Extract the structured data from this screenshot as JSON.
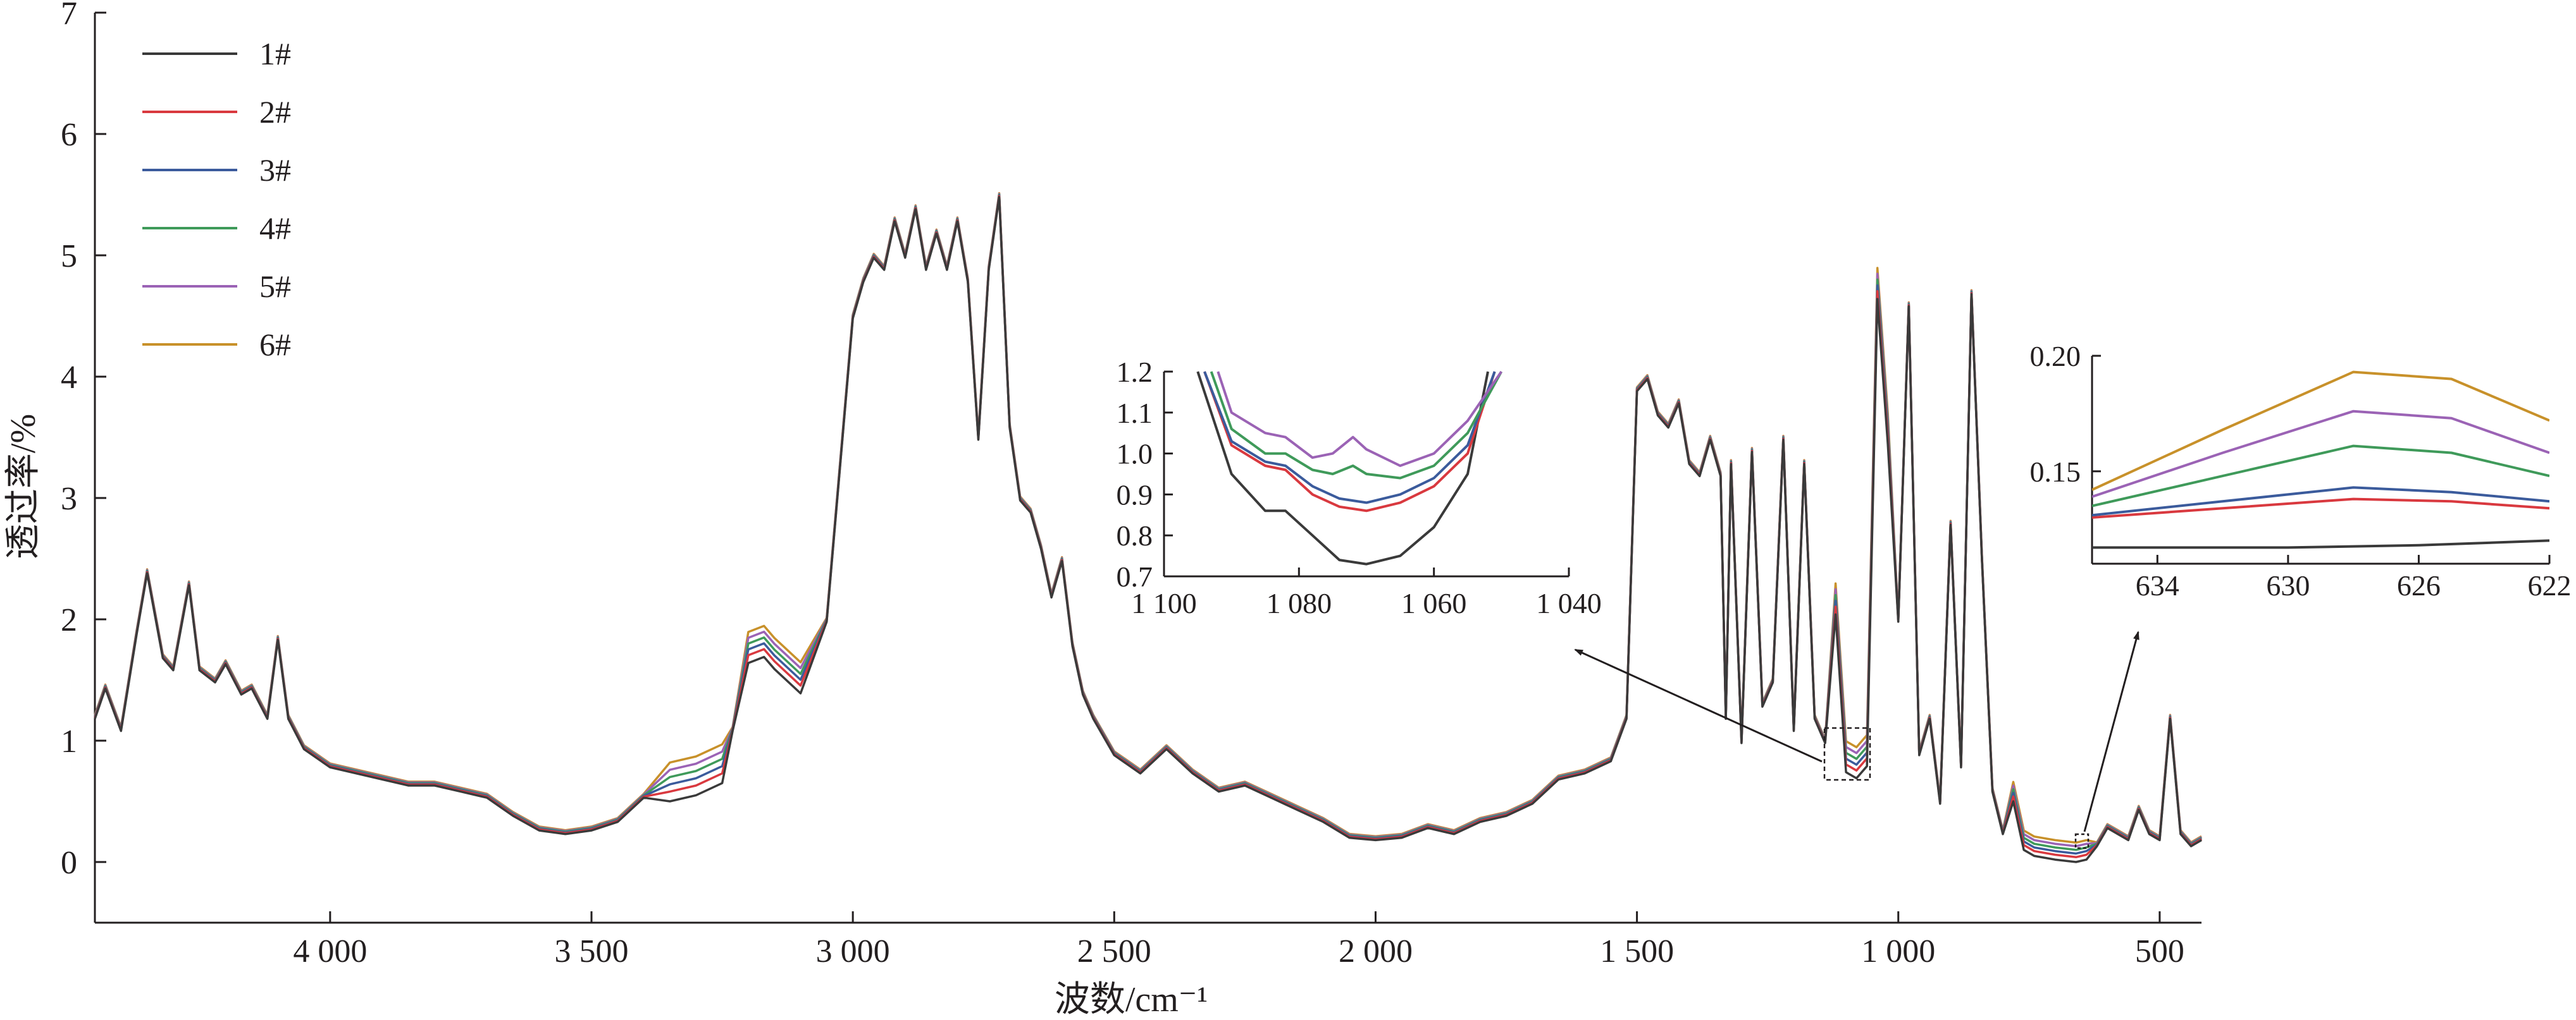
{
  "chart_data": [
    {
      "id": "main",
      "type": "line",
      "xlabel": "波数/cm⁻¹",
      "ylabel": "透过率/%",
      "x_reversed": true,
      "xlim": [
        4450,
        420
      ],
      "ylim": [
        -0.5,
        7
      ],
      "xticks": [
        4000,
        3500,
        3000,
        2500,
        2000,
        1500,
        1000,
        500
      ],
      "xtick_labels": [
        "4 000",
        "3 500",
        "3 000",
        "2 500",
        "2 000",
        "1 500",
        "1 000",
        "500"
      ],
      "yticks": [
        0,
        1,
        2,
        3,
        4,
        5,
        6,
        7
      ],
      "ytick_labels": [
        "0",
        "1",
        "2",
        "3",
        "4",
        "5",
        "6",
        "7"
      ],
      "legend_position": "top-left",
      "legend": [
        "1#",
        "2#",
        "3#",
        "4#",
        "5#",
        "6#"
      ],
      "series": [
        {
          "name": "1#",
          "color": "#3a3a3a",
          "offset": -0.1
        },
        {
          "name": "2#",
          "color": "#d9393f",
          "offset": -0.06
        },
        {
          "name": "3#",
          "color": "#3b5b9c",
          "offset": -0.03
        },
        {
          "name": "4#",
          "color": "#3f9a5a",
          "offset": 0.0
        },
        {
          "name": "5#",
          "color": "#9b63b5",
          "offset": 0.03
        },
        {
          "name": "6#",
          "color": "#c8912a",
          "offset": 0.06
        }
      ],
      "base_curve": [
        [
          4450,
          1.2
        ],
        [
          4430,
          1.45
        ],
        [
          4400,
          1.1
        ],
        [
          4370,
          1.9
        ],
        [
          4350,
          2.4
        ],
        [
          4320,
          1.7
        ],
        [
          4300,
          1.6
        ],
        [
          4270,
          2.3
        ],
        [
          4250,
          1.6
        ],
        [
          4220,
          1.5
        ],
        [
          4200,
          1.65
        ],
        [
          4170,
          1.4
        ],
        [
          4150,
          1.45
        ],
        [
          4120,
          1.2
        ],
        [
          4100,
          1.85
        ],
        [
          4080,
          1.2
        ],
        [
          4050,
          0.95
        ],
        [
          4000,
          0.8
        ],
        [
          3950,
          0.75
        ],
        [
          3900,
          0.7
        ],
        [
          3850,
          0.65
        ],
        [
          3800,
          0.65
        ],
        [
          3750,
          0.6
        ],
        [
          3700,
          0.55
        ],
        [
          3650,
          0.4
        ],
        [
          3600,
          0.28
        ],
        [
          3550,
          0.25
        ],
        [
          3500,
          0.28
        ],
        [
          3450,
          0.35
        ],
        [
          3400,
          0.55
        ],
        [
          3350,
          0.7
        ],
        [
          3300,
          0.75
        ],
        [
          3250,
          0.85
        ],
        [
          3230,
          1.1
        ],
        [
          3200,
          1.8
        ],
        [
          3170,
          1.85
        ],
        [
          3150,
          1.75
        ],
        [
          3100,
          1.55
        ],
        [
          3050,
          2.0
        ],
        [
          3020,
          3.5
        ],
        [
          3000,
          4.5
        ],
        [
          2980,
          4.8
        ],
        [
          2960,
          5.0
        ],
        [
          2940,
          4.9
        ],
        [
          2920,
          5.3
        ],
        [
          2900,
          5.0
        ],
        [
          2880,
          5.4
        ],
        [
          2860,
          4.9
        ],
        [
          2840,
          5.2
        ],
        [
          2820,
          4.9
        ],
        [
          2800,
          5.3
        ],
        [
          2780,
          4.8
        ],
        [
          2760,
          3.5
        ],
        [
          2740,
          4.9
        ],
        [
          2720,
          5.5
        ],
        [
          2700,
          3.6
        ],
        [
          2680,
          3.0
        ],
        [
          2660,
          2.9
        ],
        [
          2640,
          2.6
        ],
        [
          2620,
          2.2
        ],
        [
          2600,
          2.5
        ],
        [
          2580,
          1.8
        ],
        [
          2560,
          1.4
        ],
        [
          2540,
          1.2
        ],
        [
          2500,
          0.9
        ],
        [
          2450,
          0.75
        ],
        [
          2400,
          0.95
        ],
        [
          2350,
          0.75
        ],
        [
          2300,
          0.6
        ],
        [
          2250,
          0.65
        ],
        [
          2200,
          0.55
        ],
        [
          2150,
          0.45
        ],
        [
          2100,
          0.35
        ],
        [
          2050,
          0.22
        ],
        [
          2000,
          0.2
        ],
        [
          1950,
          0.22
        ],
        [
          1900,
          0.3
        ],
        [
          1850,
          0.25
        ],
        [
          1800,
          0.35
        ],
        [
          1750,
          0.4
        ],
        [
          1700,
          0.5
        ],
        [
          1650,
          0.7
        ],
        [
          1600,
          0.75
        ],
        [
          1550,
          0.85
        ],
        [
          1520,
          1.2
        ],
        [
          1500,
          3.9
        ],
        [
          1480,
          4.0
        ],
        [
          1460,
          3.7
        ],
        [
          1440,
          3.6
        ],
        [
          1420,
          3.8
        ],
        [
          1400,
          3.3
        ],
        [
          1380,
          3.2
        ],
        [
          1360,
          3.5
        ],
        [
          1340,
          3.2
        ],
        [
          1330,
          1.2
        ],
        [
          1320,
          3.3
        ],
        [
          1300,
          1.0
        ],
        [
          1280,
          3.4
        ],
        [
          1260,
          1.3
        ],
        [
          1240,
          1.5
        ],
        [
          1220,
          3.5
        ],
        [
          1200,
          1.1
        ],
        [
          1180,
          3.3
        ],
        [
          1160,
          1.2
        ],
        [
          1140,
          1.0
        ],
        [
          1120,
          2.2
        ],
        [
          1100,
          0.9
        ],
        [
          1080,
          0.85
        ],
        [
          1060,
          0.95
        ],
        [
          1040,
          4.8
        ],
        [
          1020,
          3.6
        ],
        [
          1000,
          2.0
        ],
        [
          980,
          4.6
        ],
        [
          960,
          0.9
        ],
        [
          940,
          1.2
        ],
        [
          920,
          0.5
        ],
        [
          900,
          2.8
        ],
        [
          880,
          0.8
        ],
        [
          860,
          4.7
        ],
        [
          840,
          2.5
        ],
        [
          820,
          0.6
        ],
        [
          800,
          0.25
        ],
        [
          780,
          0.6
        ],
        [
          760,
          0.2
        ],
        [
          740,
          0.15
        ],
        [
          700,
          0.12
        ],
        [
          660,
          0.1
        ],
        [
          640,
          0.12
        ],
        [
          620,
          0.15
        ],
        [
          600,
          0.3
        ],
        [
          580,
          0.25
        ],
        [
          560,
          0.2
        ],
        [
          540,
          0.45
        ],
        [
          520,
          0.25
        ],
        [
          500,
          0.2
        ],
        [
          480,
          1.2
        ],
        [
          460,
          0.25
        ],
        [
          440,
          0.15
        ],
        [
          420,
          0.2
        ]
      ]
    },
    {
      "id": "inset-1080",
      "type": "line",
      "x_reversed": true,
      "xlim": [
        1100,
        1040
      ],
      "ylim": [
        0.7,
        1.2
      ],
      "xticks": [
        1100,
        1080,
        1060,
        1040
      ],
      "xtick_labels": [
        "1 100",
        "1 080",
        "1 060",
        "1 040"
      ],
      "yticks": [
        0.7,
        0.8,
        0.9,
        1.0,
        1.1,
        1.2
      ],
      "ytick_labels": [
        "0.7",
        "0.8",
        "0.9",
        "1.0",
        "1.1",
        "1.2"
      ],
      "series": [
        {
          "name": "1#",
          "color": "#3a3a3a",
          "points": [
            [
              1095,
              1.2
            ],
            [
              1090,
              0.95
            ],
            [
              1085,
              0.86
            ],
            [
              1082,
              0.86
            ],
            [
              1078,
              0.8
            ],
            [
              1074,
              0.74
            ],
            [
              1070,
              0.73
            ],
            [
              1065,
              0.75
            ],
            [
              1060,
              0.82
            ],
            [
              1055,
              0.95
            ],
            [
              1052,
              1.2
            ]
          ]
        },
        {
          "name": "2#",
          "color": "#d9393f",
          "points": [
            [
              1094,
              1.2
            ],
            [
              1090,
              1.02
            ],
            [
              1085,
              0.97
            ],
            [
              1082,
              0.96
            ],
            [
              1078,
              0.9
            ],
            [
              1074,
              0.87
            ],
            [
              1070,
              0.86
            ],
            [
              1065,
              0.88
            ],
            [
              1060,
              0.92
            ],
            [
              1055,
              1.0
            ],
            [
              1051,
              1.2
            ]
          ]
        },
        {
          "name": "3#",
          "color": "#3b5b9c",
          "points": [
            [
              1094,
              1.2
            ],
            [
              1090,
              1.03
            ],
            [
              1085,
              0.98
            ],
            [
              1082,
              0.97
            ],
            [
              1078,
              0.92
            ],
            [
              1074,
              0.89
            ],
            [
              1070,
              0.88
            ],
            [
              1065,
              0.9
            ],
            [
              1060,
              0.94
            ],
            [
              1055,
              1.02
            ],
            [
              1051,
              1.2
            ]
          ]
        },
        {
          "name": "4#",
          "color": "#3f9a5a",
          "points": [
            [
              1093,
              1.2
            ],
            [
              1090,
              1.06
            ],
            [
              1085,
              1.0
            ],
            [
              1082,
              1.0
            ],
            [
              1078,
              0.96
            ],
            [
              1075,
              0.95
            ],
            [
              1072,
              0.97
            ],
            [
              1070,
              0.95
            ],
            [
              1065,
              0.94
            ],
            [
              1060,
              0.97
            ],
            [
              1055,
              1.05
            ],
            [
              1050,
              1.2
            ]
          ]
        },
        {
          "name": "5#",
          "color": "#9b63b5",
          "points": [
            [
              1092,
              1.2
            ],
            [
              1090,
              1.1
            ],
            [
              1085,
              1.05
            ],
            [
              1082,
              1.04
            ],
            [
              1078,
              0.99
            ],
            [
              1075,
              1.0
            ],
            [
              1072,
              1.04
            ],
            [
              1070,
              1.01
            ],
            [
              1065,
              0.97
            ],
            [
              1060,
              1.0
            ],
            [
              1055,
              1.08
            ],
            [
              1050,
              1.2
            ]
          ]
        }
      ]
    },
    {
      "id": "inset-630",
      "type": "line",
      "x_reversed": true,
      "xlim": [
        636,
        622
      ],
      "ylim": [
        0.11,
        0.2
      ],
      "xticks": [
        634,
        630,
        626,
        622
      ],
      "xtick_labels": [
        "634",
        "630",
        "626",
        "622"
      ],
      "yticks": [
        0.15,
        0.2
      ],
      "ytick_labels": [
        "0.15",
        "0.20"
      ],
      "series": [
        {
          "name": "1#",
          "color": "#3a3a3a",
          "points": [
            [
              636,
              0.117
            ],
            [
              630,
              0.117
            ],
            [
              626,
              0.118
            ],
            [
              622,
              0.12
            ]
          ]
        },
        {
          "name": "2#",
          "color": "#d9393f",
          "points": [
            [
              636,
              0.13
            ],
            [
              632,
              0.134
            ],
            [
              628,
              0.138
            ],
            [
              625,
              0.137
            ],
            [
              622,
              0.134
            ]
          ]
        },
        {
          "name": "3#",
          "color": "#3b5b9c",
          "points": [
            [
              636,
              0.131
            ],
            [
              632,
              0.137
            ],
            [
              628,
              0.143
            ],
            [
              625,
              0.141
            ],
            [
              622,
              0.137
            ]
          ]
        },
        {
          "name": "4#",
          "color": "#3f9a5a",
          "points": [
            [
              636,
              0.135
            ],
            [
              632,
              0.148
            ],
            [
              628,
              0.161
            ],
            [
              625,
              0.158
            ],
            [
              622,
              0.148
            ]
          ]
        },
        {
          "name": "5#",
          "color": "#9b63b5",
          "points": [
            [
              636,
              0.139
            ],
            [
              632,
              0.158
            ],
            [
              628,
              0.176
            ],
            [
              625,
              0.173
            ],
            [
              622,
              0.158
            ]
          ]
        },
        {
          "name": "6#",
          "color": "#c8912a",
          "points": [
            [
              636,
              0.142
            ],
            [
              632,
              0.168
            ],
            [
              628,
              0.193
            ],
            [
              625,
              0.19
            ],
            [
              622,
              0.172
            ]
          ]
        }
      ]
    }
  ]
}
